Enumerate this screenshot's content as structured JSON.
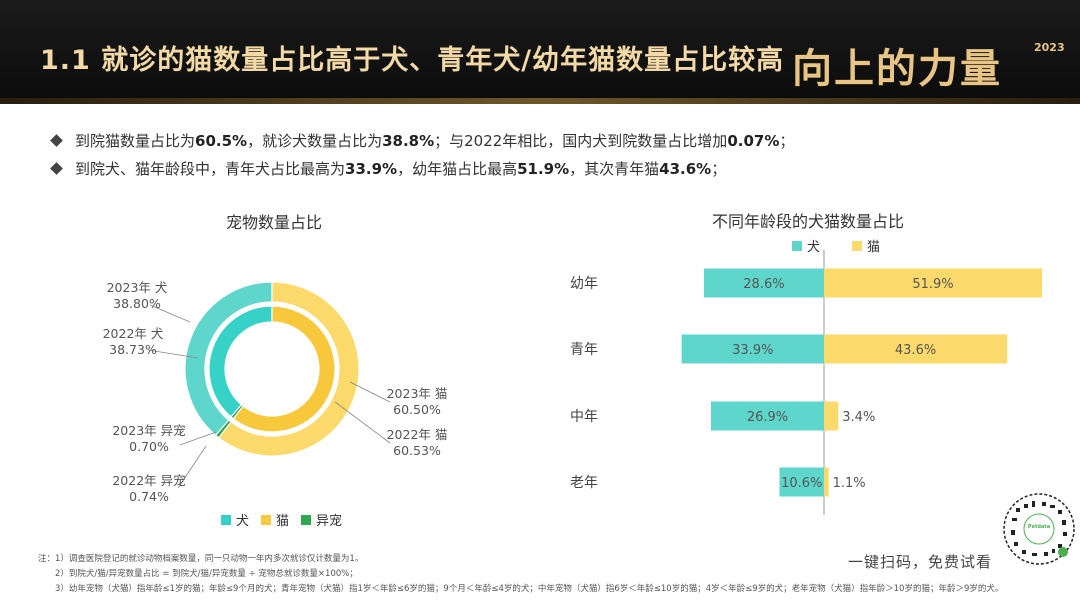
{
  "header": {
    "title": "1.1 就诊的猫数量占比高于犬、青年犬/幼年猫数量占比较高",
    "brand": "向上的力量",
    "brand_year": "2023"
  },
  "bullets": [
    {
      "segments": [
        {
          "t": "到院猫数量占比为",
          "b": false
        },
        {
          "t": "60.5%",
          "b": true
        },
        {
          "t": "，就诊犬数量占比为",
          "b": false
        },
        {
          "t": "38.8%",
          "b": true
        },
        {
          "t": "；与2022年相比，国内犬到院数量占比增加",
          "b": false
        },
        {
          "t": "0.07%",
          "b": true
        },
        {
          "t": "；",
          "b": false
        }
      ]
    },
    {
      "segments": [
        {
          "t": "到院犬、猫年龄段中，青年犬占比最高为",
          "b": false
        },
        {
          "t": "33.9%",
          "b": true
        },
        {
          "t": "，幼年猫占比最高",
          "b": false
        },
        {
          "t": "51.9%",
          "b": true
        },
        {
          "t": "，其次青年猫",
          "b": false
        },
        {
          "t": "43.6%",
          "b": true
        },
        {
          "t": "；",
          "b": false
        }
      ]
    }
  ],
  "colors": {
    "dog": "#5fd6cc",
    "dog_inner": "#36d2c8",
    "cat": "#fbd96a",
    "cat_inner": "#f8c83c",
    "exotic": "#2fa84f"
  },
  "chart_data": [
    {
      "type": "pie",
      "title": "宠物数量占比",
      "legend": [
        "犬",
        "猫",
        "异宠"
      ],
      "rings": [
        {
          "name": "2023年",
          "position": "outer",
          "slices": [
            {
              "label": "犬",
              "value": 38.8
            },
            {
              "label": "猫",
              "value": 60.5
            },
            {
              "label": "异宠",
              "value": 0.7
            }
          ]
        },
        {
          "name": "2022年",
          "position": "inner",
          "slices": [
            {
              "label": "犬",
              "value": 38.73
            },
            {
              "label": "猫",
              "value": 60.53
            },
            {
              "label": "异宠",
              "value": 0.74
            }
          ]
        }
      ],
      "annotations": [
        {
          "line1": "2023年 犬",
          "line2": "38.80%"
        },
        {
          "line1": "2022年 犬",
          "line2": "38.73%"
        },
        {
          "line1": "2023年 异宠",
          "line2": "0.70%"
        },
        {
          "line1": "2022年 异宠",
          "line2": "0.74%"
        },
        {
          "line1": "2023年 猫",
          "line2": "60.50%"
        },
        {
          "line1": "2022年 猫",
          "line2": "60.53%"
        }
      ]
    },
    {
      "type": "bar",
      "orientation": "horizontal-diverging",
      "title": "不同年龄段的犬猫数量占比",
      "categories": [
        "幼年",
        "青年",
        "中年",
        "老年"
      ],
      "series": [
        {
          "name": "犬",
          "values": [
            28.6,
            33.9,
            26.9,
            10.6
          ]
        },
        {
          "name": "猫",
          "values": [
            51.9,
            43.6,
            3.4,
            1.1
          ]
        }
      ],
      "value_labels": {
        "犬": [
          "28.6%",
          "33.9%",
          "26.9%",
          "10.6%"
        ],
        "猫": [
          "51.9%",
          "43.6%",
          "3.4%",
          "1.1%"
        ]
      },
      "legend_position": "top"
    }
  ],
  "notes": [
    "注：1）调查医院登记的就诊动物档案数量，同一只动物一年内多次就诊仅计数量为1。",
    "2）到院犬/猫/异宠数量占比 = 到院犬/猫/异宠数量 ÷ 宠物总就诊数量×100%；",
    "3）幼年宠物（犬猫）指年龄≤1岁的猫；年龄≤9个月的犬；青年宠物（犬猫）指1岁＜年龄≤6岁的猫；9个月＜年龄≤4岁的犬；中年宠物（犬猫）指6岁＜年龄≤10岁的猫；4岁＜年龄≤9岁的犬；老年宠物（犬猫）指年龄＞10岁的猫；年龄＞9岁的犬。"
  ],
  "cta": "一键扫码，免费试看"
}
